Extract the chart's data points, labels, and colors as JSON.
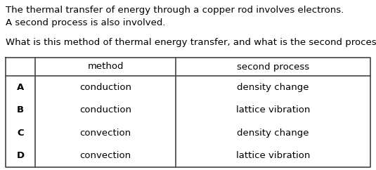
{
  "intro_text_line1": "The thermal transfer of energy through a copper rod involves electrons.",
  "intro_text_line2": "A second process is also involved.",
  "question_text": "What is this method of thermal energy transfer, and what is the second process?",
  "table_header": [
    "",
    "method",
    "second process"
  ],
  "table_rows": [
    [
      "A",
      "conduction",
      "density change"
    ],
    [
      "B",
      "conduction",
      "lattice vibration"
    ],
    [
      "C",
      "convection",
      "density change"
    ],
    [
      "D",
      "convection",
      "lattice vibration"
    ]
  ],
  "background_color": "#ffffff",
  "text_color": "#000000",
  "line_color": "#444444",
  "font_size": 9.5,
  "fig_width": 5.35,
  "fig_height": 2.42,
  "dpi": 100
}
